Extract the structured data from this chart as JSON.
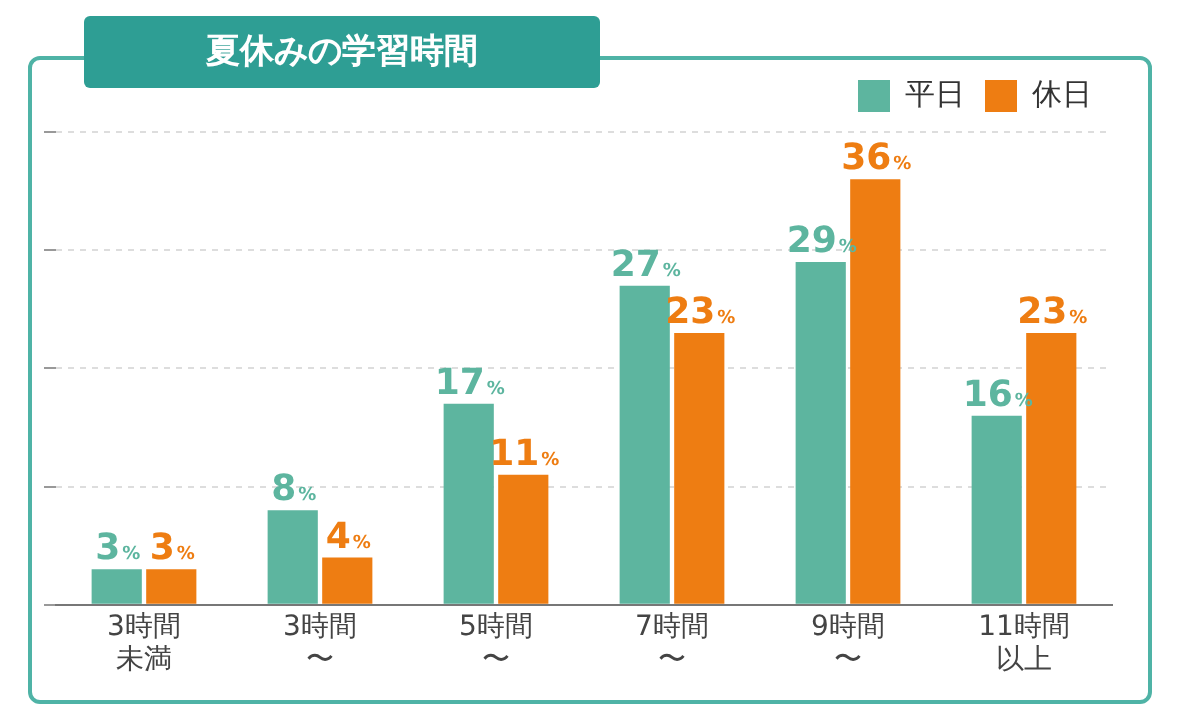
{
  "chart_data": {
    "type": "bar",
    "title": "夏休みの学習時間",
    "categories": [
      "3時間未満",
      "3時間〜",
      "5時間〜",
      "7時間〜",
      "9時間〜",
      "11時間以上"
    ],
    "series": [
      {
        "name": "平日",
        "color": "#5db59f",
        "values": [
          3,
          8,
          17,
          27,
          29,
          16
        ],
        "value_labels": [
          "3%",
          "8%",
          "17%",
          "27%",
          "29%",
          "16%"
        ]
      },
      {
        "name": "休日",
        "color": "#ee7d12",
        "values": [
          3,
          4,
          11,
          23,
          36,
          23
        ],
        "value_labels": [
          "3%",
          "4%",
          "11%",
          "23%",
          "36%",
          "23%"
        ]
      }
    ],
    "ylim": [
      0,
      40
    ],
    "yticks": [
      {
        "value": 0,
        "label": null
      },
      {
        "value": 10,
        "label": null
      },
      {
        "value": 20,
        "label": null
      },
      {
        "value": 30,
        "label": null
      },
      {
        "value": 40,
        "label": null
      }
    ],
    "tick_labels": "x",
    "grid": "y",
    "legend": "top right"
  }
}
